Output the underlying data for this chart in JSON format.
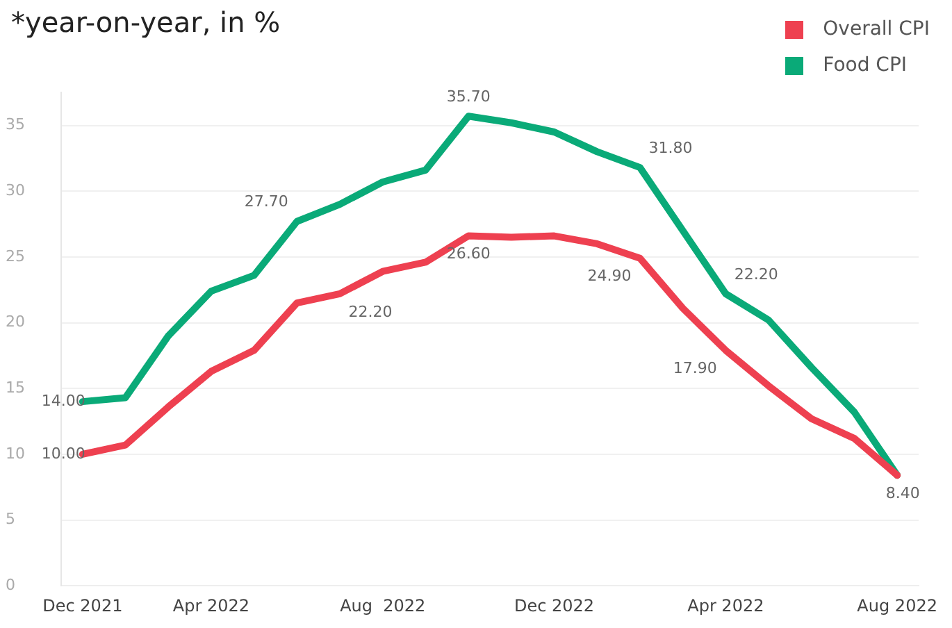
{
  "chart_data": {
    "type": "line",
    "title": "*year-on-year, in %",
    "categories": [
      "Dec 2021",
      null,
      null,
      "Apr 2022",
      null,
      null,
      null,
      "Aug  2022",
      null,
      null,
      null,
      "Dec 2022",
      null,
      null,
      null,
      "Apr 2022",
      null,
      null,
      null,
      "Aug 2022"
    ],
    "series": [
      {
        "name": "Overall CPI",
        "color": "#ee4050",
        "values": [
          10.0,
          10.7,
          13.6,
          16.3,
          17.9,
          21.5,
          22.2,
          23.9,
          24.6,
          26.6,
          26.5,
          26.6,
          26.0,
          24.9,
          21.1,
          17.9,
          15.2,
          12.7,
          11.2,
          8.4
        ],
        "value_labels": [
          "10.00",
          null,
          null,
          null,
          null,
          null,
          "22.20",
          null,
          null,
          "26.60",
          null,
          null,
          null,
          "24.90",
          null,
          "17.90",
          null,
          null,
          null,
          null
        ]
      },
      {
        "name": "Food CPI",
        "color": "#0aaa78",
        "values": [
          14.0,
          14.3,
          19.0,
          22.4,
          23.6,
          27.7,
          29.0,
          30.7,
          31.6,
          35.7,
          35.2,
          34.5,
          33.0,
          31.8,
          27.0,
          22.2,
          20.2,
          16.6,
          13.2,
          8.4
        ],
        "value_labels": [
          "14.00",
          null,
          null,
          null,
          null,
          "27.70",
          null,
          null,
          null,
          "35.70",
          null,
          null,
          null,
          "31.80",
          null,
          "22.20",
          null,
          null,
          null,
          "8.40"
        ]
      }
    ],
    "ylim": [
      0,
      37.5
    ],
    "yticks": [
      0,
      5,
      10,
      15,
      20,
      25,
      30,
      35
    ],
    "grid": "y",
    "legend": "top right",
    "marker": "none",
    "line_style": "solid"
  }
}
